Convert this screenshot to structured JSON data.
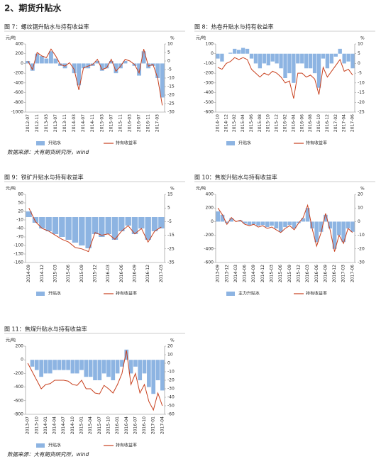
{
  "heading": "2、期货升贴水",
  "chart_data": [
    {
      "type": "combo",
      "title": "图 7：螺纹钢升贴水与持有收益率",
      "y_unit": "元/吨",
      "y2_unit": "%",
      "categories": [
        "2012-07",
        null,
        "2012-11",
        null,
        "2013-03",
        null,
        "2013-07",
        null,
        "2013-11",
        null,
        "2014-03",
        null,
        "2014-07",
        null,
        "2014-11",
        null,
        "2015-03",
        null,
        "2015-07",
        null,
        "2015-11",
        null,
        "2016-03",
        null,
        "2016-07",
        null,
        "2016-11",
        null,
        "2017-03",
        null
      ],
      "series": [
        {
          "name": "升贴水",
          "type": "bar",
          "color": "#8db4e2",
          "values": [
            50,
            -150,
            200,
            150,
            100,
            250,
            100,
            -50,
            -100,
            0,
            -200,
            -450,
            -100,
            -100,
            -50,
            50,
            -150,
            -100,
            50,
            -200,
            -100,
            50,
            0,
            -50,
            -250,
            250,
            -100,
            -50,
            -300,
            -700
          ]
        },
        {
          "name": "持有收益率",
          "type": "line",
          "axis": "y2",
          "color": "#c8401e",
          "values": [
            0,
            -5,
            5,
            3,
            2,
            7,
            3,
            -2,
            -3,
            -1,
            -5,
            -17,
            -4,
            -3,
            -2,
            1,
            -5,
            -4,
            1,
            -6,
            -3,
            1,
            0,
            -2,
            -7,
            7,
            -3,
            -2,
            -10,
            -26
          ]
        }
      ],
      "ylim": [
        -1000,
        400
      ],
      "yticks": [
        -1000,
        -800,
        -600,
        -400,
        -200,
        0,
        200,
        400
      ],
      "y2lim": [
        -30,
        10
      ],
      "y2ticks": [
        -30,
        -25,
        -20,
        -15,
        -10,
        -5,
        0,
        5,
        10
      ],
      "source": "数据来源：大有期货研究所，wind"
    },
    {
      "type": "combo",
      "title": "图 8：热卷升贴水与持有收益率",
      "y_unit": "元/吨",
      "y2_unit": "%",
      "categories": [
        "2014-10",
        null,
        "2014-12",
        null,
        "2015-02",
        null,
        "2015-04",
        null,
        "2015-06",
        null,
        "2015-08",
        null,
        "2015-10",
        null,
        "2015-12",
        null,
        "2016-02",
        null,
        "2016-04",
        null,
        "2016-06",
        null,
        "2016-08",
        null,
        "2016-10",
        null,
        "2016-12",
        null,
        "2017-02",
        null,
        "2017-04",
        null,
        "2017-06"
      ],
      "series": [
        {
          "name": "升贴水",
          "type": "bar",
          "color": "#8db4e2",
          "values": [
            -50,
            -80,
            0,
            10,
            50,
            40,
            60,
            50,
            -50,
            -100,
            -150,
            -100,
            -120,
            -80,
            -100,
            -150,
            -250,
            -200,
            -300,
            -100,
            -100,
            -150,
            -150,
            -200,
            -350,
            -50,
            -150,
            -100,
            -30,
            50,
            -100,
            -80,
            -150
          ]
        },
        {
          "name": "持有收益率",
          "type": "line",
          "axis": "y2",
          "color": "#c8401e",
          "values": [
            -2,
            -3,
            0,
            1,
            3,
            2,
            3,
            2,
            -3,
            -5,
            -7,
            -5,
            -6,
            -4,
            -5,
            -7,
            -10,
            -9,
            -18,
            -5,
            -5,
            -7,
            -6,
            -8,
            -16,
            -2,
            -7,
            -4,
            -1,
            2,
            -4,
            -3,
            -6
          ]
        }
      ],
      "ylim": [
        -600,
        100
      ],
      "yticks": [
        -600,
        -500,
        -400,
        -300,
        -200,
        -100,
        0,
        100
      ],
      "y2lim": [
        -25,
        10
      ],
      "y2ticks": [
        -25,
        -20,
        -15,
        -10,
        -5,
        0,
        5,
        10
      ]
    },
    {
      "type": "combo",
      "title": "图 9：铁矿升贴水与持有收益率",
      "y_unit": "元/吨",
      "y2_unit": "%",
      "categories": [
        "2014-09",
        null,
        "2014-12",
        null,
        "2015-03",
        null,
        "2015-06",
        null,
        "2015-09",
        null,
        "2015-12",
        null,
        "2016-03",
        null,
        "2016-06",
        null,
        "2016-09",
        null,
        "2016-12",
        null,
        "2017-03"
      ],
      "series": [
        {
          "name": "升贴水",
          "type": "bar",
          "color": "#8db4e2",
          "values": [
            20,
            -20,
            -40,
            -50,
            -60,
            -70,
            -80,
            -90,
            -100,
            -110,
            -60,
            -70,
            -60,
            -80,
            -50,
            -30,
            -60,
            -40,
            -80,
            -50,
            -40
          ]
        },
        {
          "name": "持有收益率",
          "type": "line",
          "axis": "y2",
          "color": "#c8401e",
          "values": [
            5,
            -5,
            -10,
            -12,
            -15,
            -18,
            -20,
            -24,
            -25,
            -27,
            -13,
            -15,
            -14,
            -18,
            -12,
            -8,
            -14,
            -10,
            -20,
            -12,
            -9
          ]
        }
      ],
      "ylim": [
        -160,
        80
      ],
      "yticks": [
        -160,
        -130,
        -100,
        -70,
        -40,
        -10,
        20,
        50,
        80
      ],
      "y2lim": [
        -35,
        15
      ],
      "y2ticks": [
        -35,
        -25,
        -15,
        -5,
        5,
        15
      ]
    },
    {
      "type": "combo",
      "title": "图 10：焦炭升贴水与持有收益率",
      "y_unit": "元/吨",
      "y2_unit": "%",
      "categories": [
        "2013-09",
        null,
        "2013-12",
        null,
        "2014-03",
        null,
        "2014-06",
        null,
        "2014-09",
        null,
        "2014-12",
        null,
        "2015-03",
        null,
        "2015-06",
        null,
        "2015-09",
        null,
        "2015-12",
        null,
        "2016-03",
        null,
        "2016-06",
        null,
        "2016-09",
        null,
        "2016-12",
        null,
        "2017-03",
        null,
        "2017-06"
      ],
      "series": [
        {
          "name": "主力升贴水",
          "type": "bar",
          "color": "#8db4e2",
          "values": [
            150,
            100,
            -20,
            50,
            0,
            20,
            -30,
            -50,
            -40,
            -60,
            -50,
            -80,
            -60,
            -100,
            -150,
            -80,
            -50,
            -100,
            -20,
            50,
            200,
            -100,
            -300,
            -150,
            100,
            -100,
            -400,
            -200,
            -300,
            -100,
            -150
          ]
        },
        {
          "name": "持有收益率",
          "type": "line",
          "axis": "y2",
          "color": "#c8401e",
          "values": [
            10,
            5,
            -2,
            3,
            0,
            1,
            -2,
            -3,
            -2,
            -4,
            -3,
            -5,
            -4,
            -6,
            -8,
            -5,
            -3,
            -6,
            -1,
            3,
            12,
            -5,
            -18,
            -8,
            6,
            -6,
            -22,
            -10,
            -16,
            -5,
            -8
          ]
        }
      ],
      "ylim": [
        -600,
        400
      ],
      "yticks": [
        -600,
        -400,
        -200,
        0,
        200,
        400
      ],
      "y2lim": [
        -30,
        20
      ],
      "y2ticks": [
        -30,
        -20,
        -10,
        0,
        10,
        20
      ]
    },
    {
      "type": "combo",
      "title": "图 11：焦煤升贴水与持有收益率",
      "y_unit": "元/吨",
      "y2_unit": "%",
      "categories": [
        "2013-07",
        null,
        "2013-10",
        null,
        "2014-01",
        null,
        "2014-04",
        null,
        "2014-07",
        null,
        "2014-10",
        null,
        "2015-01",
        null,
        "2015-04",
        null,
        "2015-07",
        null,
        "2015-10",
        null,
        "2016-01",
        null,
        "2016-04",
        null,
        "2016-07",
        null,
        "2016-10",
        null,
        "2017-01",
        null,
        "2017-04"
      ],
      "series": [
        {
          "name": "升贴水",
          "type": "bar",
          "color": "#8db4e2",
          "values": [
            0,
            -100,
            -150,
            -250,
            -200,
            -200,
            -150,
            -150,
            -150,
            -150,
            -200,
            -200,
            -150,
            -250,
            -250,
            -300,
            -300,
            -200,
            -250,
            -300,
            -200,
            -100,
            150,
            -200,
            -100,
            -300,
            -200,
            -400,
            -500,
            -300,
            -450
          ]
        },
        {
          "name": "持有收益率",
          "type": "line",
          "axis": "y2",
          "color": "#c8401e",
          "values": [
            0,
            -10,
            -20,
            -30,
            -25,
            -24,
            -20,
            -20,
            -20,
            -21,
            -25,
            -26,
            -20,
            -30,
            -30,
            -35,
            -36,
            -26,
            -30,
            -35,
            -25,
            -12,
            15,
            -25,
            -12,
            -35,
            -25,
            -45,
            -55,
            -35,
            -50
          ]
        }
      ],
      "ylim": [
        -800,
        200
      ],
      "yticks": [
        -800,
        -600,
        -400,
        -200,
        0,
        200
      ],
      "y2lim": [
        -60,
        20
      ],
      "y2ticks": [
        -60,
        -50,
        -40,
        -30,
        -20,
        -10,
        0,
        10,
        20
      ],
      "source": "数据来源：大有期货研究所，wind"
    }
  ]
}
